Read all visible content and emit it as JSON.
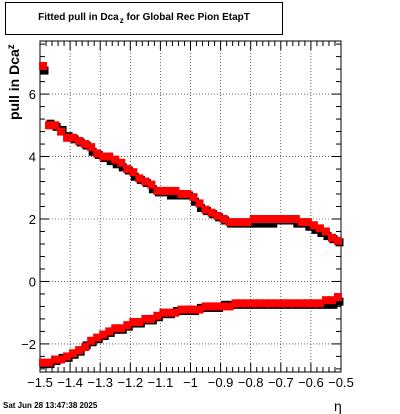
{
  "chart_data": {
    "type": "scatter",
    "title": {
      "main": "Fitted pull in Dca",
      "sub": "z",
      "suffix": " for Global Rec Pion EtapT"
    },
    "ylabel": {
      "main": "pull in Dca",
      "sub": "z"
    },
    "xlabel": "η",
    "xlim": [
      -1.5,
      -0.5
    ],
    "ylim": [
      -2.9,
      7.7
    ],
    "x_ticks": [
      {
        "v": -1.5,
        "label": "−1.5"
      },
      {
        "v": -1.4,
        "label": "−1.4"
      },
      {
        "v": -1.3,
        "label": "−1.3"
      },
      {
        "v": -1.2,
        "label": "−1.2"
      },
      {
        "v": -1.1,
        "label": "−1.1"
      },
      {
        "v": -1.0,
        "label": "−1"
      },
      {
        "v": -0.9,
        "label": "−0.9"
      },
      {
        "v": -0.8,
        "label": "−0.8"
      },
      {
        "v": -0.7,
        "label": "−0.7"
      },
      {
        "v": -0.6,
        "label": "−0.6"
      },
      {
        "v": -0.5,
        "label": "−0.5"
      }
    ],
    "y_ticks": [
      {
        "v": -2,
        "label": "−2"
      },
      {
        "v": 0,
        "label": "0"
      },
      {
        "v": 2,
        "label": "2"
      },
      {
        "v": 4,
        "label": "4"
      },
      {
        "v": 6,
        "label": "6"
      }
    ],
    "grid": true,
    "marker_colors": {
      "black": "#000000",
      "red": "#ff0000"
    },
    "series": [
      {
        "color": "black",
        "x": [
          -1.49,
          -1.47,
          -1.45,
          -1.43,
          -1.41,
          -1.39,
          -1.37,
          -1.35,
          -1.33,
          -1.31,
          -1.29,
          -1.27,
          -1.25,
          -1.23,
          -1.21,
          -1.19,
          -1.17,
          -1.15,
          -1.13,
          -1.11,
          -1.09,
          -1.07,
          -1.05,
          -1.03,
          -1.01,
          -0.99,
          -0.97,
          -0.95,
          -0.93,
          -0.91,
          -0.89,
          -0.87,
          -0.85,
          -0.83,
          -0.81,
          -0.79,
          -0.77,
          -0.75,
          -0.73,
          -0.71,
          -0.69,
          -0.67,
          -0.65,
          -0.63,
          -0.61,
          -0.59,
          -0.57,
          -0.55,
          -0.53,
          -0.51,
          -1.49,
          -1.47,
          -1.45,
          -1.43,
          -1.41,
          -1.39,
          -1.37,
          -1.35,
          -1.33,
          -1.31,
          -1.29,
          -1.27,
          -1.25,
          -1.23,
          -1.21,
          -1.19,
          -1.17,
          -1.15,
          -1.13,
          -1.11,
          -1.09,
          -1.07,
          -1.05,
          -1.03,
          -1.01,
          -0.99,
          -0.97,
          -0.95,
          -0.93,
          -0.91,
          -0.89,
          -0.87,
          -0.85,
          -0.83,
          -0.81,
          -0.79,
          -0.77,
          -0.75,
          -0.73,
          -0.71,
          -0.69,
          -0.67,
          -0.65,
          -0.63,
          -0.61,
          -0.59,
          -0.57,
          -0.55,
          -0.53,
          -0.51
        ],
        "y": [
          6.8,
          5.1,
          5.0,
          4.9,
          4.7,
          4.6,
          4.5,
          4.4,
          4.2,
          4.1,
          4.0,
          3.9,
          3.8,
          3.7,
          3.6,
          3.4,
          3.3,
          3.2,
          3.0,
          2.9,
          2.9,
          2.8,
          2.8,
          2.8,
          2.8,
          2.6,
          2.4,
          2.3,
          2.2,
          2.1,
          2.0,
          1.9,
          1.9,
          1.9,
          1.9,
          1.9,
          1.9,
          1.9,
          1.9,
          2.0,
          2.0,
          2.0,
          1.9,
          1.9,
          1.8,
          1.7,
          1.6,
          1.5,
          1.4,
          1.3,
          -2.6,
          -2.6,
          -2.5,
          -2.4,
          -2.4,
          -2.3,
          -2.2,
          -2.0,
          -1.9,
          -1.8,
          -1.7,
          -1.6,
          -1.5,
          -1.5,
          -1.4,
          -1.3,
          -1.3,
          -1.2,
          -1.2,
          -1.1,
          -1.0,
          -1.0,
          -0.9,
          -0.9,
          -0.9,
          -0.9,
          -0.8,
          -0.8,
          -0.8,
          -0.8,
          -0.7,
          -0.7,
          -0.7,
          -0.7,
          -0.7,
          -0.7,
          -0.7,
          -0.7,
          -0.7,
          -0.7,
          -0.7,
          -0.7,
          -0.7,
          -0.7,
          -0.7,
          -0.7,
          -0.7,
          -0.7,
          -0.7,
          -0.6
        ]
      },
      {
        "color": "red",
        "x": [
          -1.49,
          -1.47,
          -1.45,
          -1.43,
          -1.41,
          -1.39,
          -1.37,
          -1.35,
          -1.33,
          -1.31,
          -1.29,
          -1.27,
          -1.25,
          -1.23,
          -1.21,
          -1.19,
          -1.17,
          -1.15,
          -1.13,
          -1.11,
          -1.09,
          -1.07,
          -1.05,
          -1.03,
          -1.01,
          -0.99,
          -0.97,
          -0.95,
          -0.93,
          -0.91,
          -0.89,
          -0.87,
          -0.85,
          -0.83,
          -0.81,
          -0.79,
          -0.77,
          -0.75,
          -0.73,
          -0.71,
          -0.69,
          -0.67,
          -0.65,
          -0.63,
          -0.61,
          -0.59,
          -0.57,
          -0.55,
          -0.53,
          -0.51,
          -1.49,
          -1.47,
          -1.45,
          -1.43,
          -1.41,
          -1.39,
          -1.37,
          -1.35,
          -1.33,
          -1.31,
          -1.29,
          -1.27,
          -1.25,
          -1.23,
          -1.21,
          -1.19,
          -1.17,
          -1.15,
          -1.13,
          -1.11,
          -1.09,
          -1.07,
          -1.05,
          -1.03,
          -1.01,
          -0.99,
          -0.97,
          -0.95,
          -0.93,
          -0.91,
          -0.89,
          -0.87,
          -0.85,
          -0.83,
          -0.81,
          -0.79,
          -0.77,
          -0.75,
          -0.73,
          -0.71,
          -0.69,
          -0.67,
          -0.65,
          -0.63,
          -0.61,
          -0.59,
          -0.57,
          -0.55,
          -0.53,
          -0.51
        ],
        "y": [
          6.9,
          5.0,
          5.0,
          4.8,
          4.6,
          4.6,
          4.5,
          4.4,
          4.3,
          4.1,
          4.0,
          4.0,
          3.9,
          3.8,
          3.6,
          3.5,
          3.3,
          3.2,
          3.1,
          2.9,
          2.9,
          2.9,
          2.9,
          2.8,
          2.8,
          2.7,
          2.5,
          2.3,
          2.2,
          2.1,
          2.0,
          1.9,
          1.9,
          1.9,
          1.9,
          2.0,
          2.0,
          2.0,
          2.0,
          2.0,
          2.0,
          2.0,
          2.0,
          1.9,
          1.9,
          1.8,
          1.7,
          1.6,
          1.4,
          1.3,
          -2.6,
          -2.6,
          -2.5,
          -2.5,
          -2.4,
          -2.3,
          -2.2,
          -2.1,
          -1.9,
          -1.8,
          -1.7,
          -1.6,
          -1.5,
          -1.5,
          -1.4,
          -1.3,
          -1.3,
          -1.2,
          -1.2,
          -1.1,
          -1.0,
          -1.0,
          -1.0,
          -0.9,
          -0.9,
          -0.9,
          -0.9,
          -0.8,
          -0.8,
          -0.8,
          -0.8,
          -0.8,
          -0.7,
          -0.7,
          -0.7,
          -0.7,
          -0.7,
          -0.7,
          -0.7,
          -0.7,
          -0.7,
          -0.7,
          -0.7,
          -0.7,
          -0.7,
          -0.7,
          -0.7,
          -0.6,
          -0.6,
          -0.5
        ]
      }
    ]
  },
  "footer": {
    "timestamp": "Sat Jun 28 13:47:38 2025"
  }
}
